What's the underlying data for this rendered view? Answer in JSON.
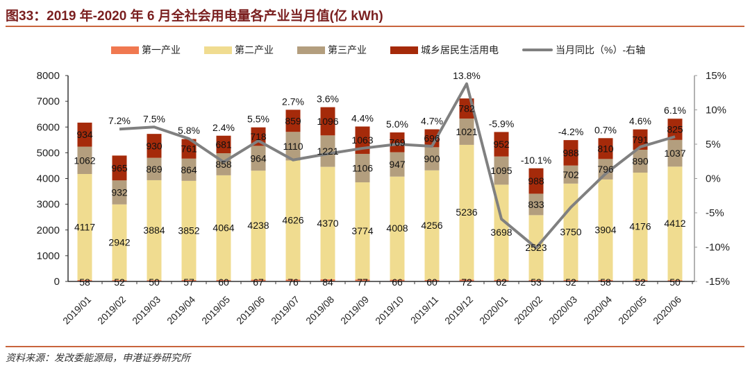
{
  "title": "图33：2019 年-2020 年 6 月全社会用电量各产业当月值(亿 kWh)",
  "source": "资料来源：发改委能源局，申港证券研究所",
  "chart_data": {
    "type": "bar",
    "stacked": true,
    "title": "图33：2019 年-2020 年 6 月全社会用电量各产业当月值(亿 kWh)",
    "categories": [
      "2019/01",
      "2019/02",
      "2019/03",
      "2019/04",
      "2019/05",
      "2019/06",
      "2019/07",
      "2019/08",
      "2019/09",
      "2019/10",
      "2019/11",
      "2019/12",
      "2020/01",
      "2020/02",
      "2020/03",
      "2020/04",
      "2020/05",
      "2020/06"
    ],
    "series": [
      {
        "name": "第一产业",
        "color": "#f07850",
        "values": [
          58,
          52,
          50,
          57,
          60,
          67,
          76,
          84,
          77,
          66,
          60,
          72,
          62,
          53,
          52,
          58,
          52,
          50
        ]
      },
      {
        "name": "第二产业",
        "color": "#f0dc90",
        "values": [
          4117,
          2942,
          3884,
          3852,
          4064,
          4238,
          4626,
          4370,
          3774,
          4008,
          4256,
          5236,
          3698,
          2523,
          3750,
          3904,
          4176,
          4412
        ]
      },
      {
        "name": "第三产业",
        "color": "#b39e7e",
        "values": [
          1062,
          932,
          869,
          864,
          858,
          964,
          1110,
          1221,
          1106,
          947,
          900,
          1021,
          1095,
          833,
          702,
          796,
          890,
          1037
        ]
      },
      {
        "name": "城乡居民生活用电",
        "color": "#a52a0a",
        "values": [
          934,
          965,
          930,
          761,
          681,
          718,
          859,
          1096,
          1063,
          769,
          696,
          782,
          952,
          988,
          988,
          810,
          791,
          825
        ]
      }
    ],
    "line": {
      "name": "当月同比（%）-右轴",
      "color": "#808080",
      "axis": "right",
      "values": [
        null,
        7.2,
        7.5,
        5.8,
        2.4,
        5.5,
        2.7,
        3.6,
        4.4,
        5.0,
        4.7,
        13.8,
        -5.9,
        -10.1,
        -4.2,
        0.7,
        4.6,
        6.1
      ],
      "labels": [
        "",
        "7.2%",
        "7.5%",
        "5.8%",
        "2.4%",
        "5.5%",
        "2.7%",
        "3.6%",
        "4.4%",
        "5.0%",
        "4.7%",
        "13.8%",
        "-5.9%",
        "-10.1%",
        "-4.2%",
        "0.7%",
        "4.6%",
        "6.1%"
      ]
    },
    "y_left": {
      "min": 0,
      "max": 8000,
      "ticks": [
        "0",
        "1000",
        "2000",
        "3000",
        "4000",
        "5000",
        "6000",
        "7000",
        "8000"
      ]
    },
    "y_right": {
      "min": -15,
      "max": 15,
      "ticks": [
        "-15%",
        "-10%",
        "-5%",
        "0%",
        "5%",
        "10%",
        "15%"
      ]
    },
    "legend_position": "top",
    "grid": false
  }
}
